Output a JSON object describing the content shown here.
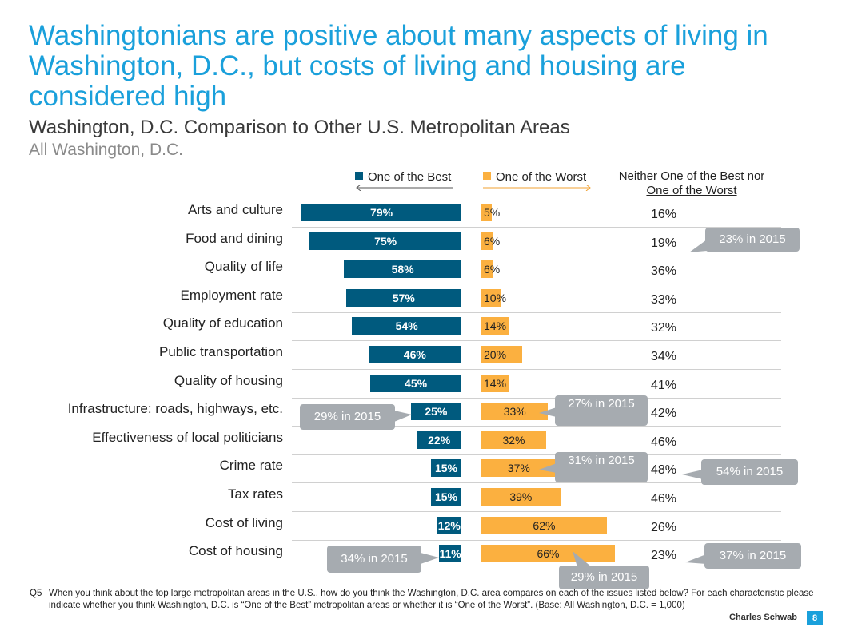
{
  "slide": {
    "title": "Washingtonians are positive about many aspects of living in Washington, D.C., but costs of living and housing are considered high",
    "subtitle": "Washington, D.C. Comparison to Other U.S. Metropolitan Areas",
    "subsubtitle": "All Washington, D.C."
  },
  "legend": {
    "best_label": "One of the Best",
    "worst_label": "One of the Worst",
    "neither_line1": "Neither One of the Best nor",
    "neither_line2": "One of the Worst"
  },
  "colors": {
    "best": "#005a7e",
    "worst": "#fbb040",
    "title": "#1aa0db",
    "callout": "#a6abb0"
  },
  "chart_data": {
    "type": "bar",
    "title": "Washington, D.C. Comparison to Other U.S. Metropolitan Areas",
    "categories": [
      "Arts and culture",
      "Food and dining",
      "Quality of life",
      "Employment rate",
      "Quality of education",
      "Public transportation",
      "Quality of housing",
      "Infrastructure: roads, highways, etc.",
      "Effectiveness of local politicians",
      "Crime rate",
      "Tax rates",
      "Cost of living",
      "Cost of housing"
    ],
    "series": [
      {
        "name": "One of the Best",
        "values": [
          79,
          75,
          58,
          57,
          54,
          46,
          45,
          25,
          22,
          15,
          15,
          12,
          11
        ]
      },
      {
        "name": "One of the Worst",
        "values": [
          5,
          6,
          6,
          10,
          14,
          20,
          14,
          33,
          32,
          37,
          39,
          62,
          66
        ]
      },
      {
        "name": "Neither One of the Best nor One of the Worst",
        "values": [
          16,
          19,
          36,
          33,
          32,
          34,
          41,
          42,
          46,
          48,
          46,
          26,
          23
        ]
      }
    ],
    "labels": {
      "best": [
        "79%",
        "75%",
        "58%",
        "57%",
        "54%",
        "46%",
        "45%",
        "25%",
        "22%",
        "15%",
        "15%",
        "12%",
        "11%"
      ],
      "worst": [
        "5%",
        "6%",
        "6%",
        "10%",
        "14%",
        "20%",
        "14%",
        "33%",
        "32%",
        "37%",
        "39%",
        "62%",
        "66%"
      ],
      "neither": [
        "16%",
        "19%",
        "36%",
        "33%",
        "32%",
        "34%",
        "41%",
        "42%",
        "46%",
        "48%",
        "46%",
        "26%",
        "23%"
      ]
    },
    "unit": "%"
  },
  "callouts": {
    "food_neither": "23% in 2015",
    "infra_best": "29% in 2015",
    "infra_worst": "27% in 2015",
    "crime_worst": "31% in 2015",
    "crime_neither": "54% in 2015",
    "housing_best": "34% in 2015",
    "housing_worst": "29% in 2015",
    "housing_neither": "37% in 2015"
  },
  "footnote": {
    "qnum": "Q5",
    "part1": "When you think about the top large metropolitan areas in the U.S., how do you think the Washington, D.C. area compares on each of the issues listed below? For each characteristic please indicate whether ",
    "underlined": "you think",
    "part2": " Washington, D.C. is “One of the Best” metropolitan areas or whether it is “One of the Worst”.  (Base: All Washington, D.C. = 1,000)"
  },
  "footer": {
    "brand": "Charles Schwab",
    "page": "8"
  }
}
